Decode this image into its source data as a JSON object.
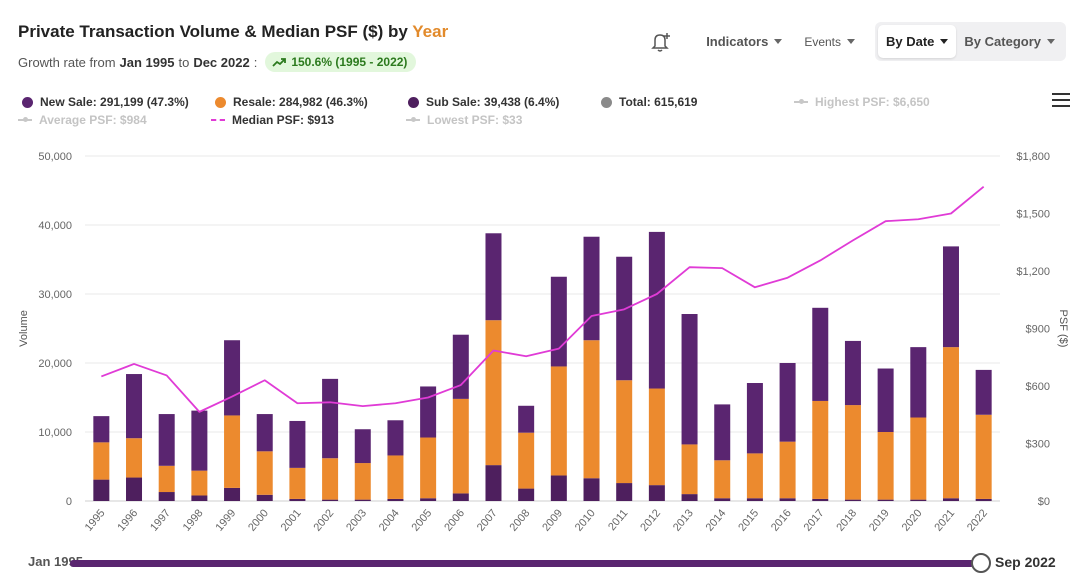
{
  "header": {
    "title_main": "Private Transaction Volume & Median PSF ($) by",
    "title_accent": "Year",
    "growth_prefix": "Growth rate from",
    "growth_from": "Jan 1995",
    "growth_to_word": "to",
    "growth_to": "Dec 2022",
    "growth_badge": "150.6% (1995 - 2022)"
  },
  "toolbar": {
    "indicators_label": "Indicators",
    "events_label": "Events",
    "by_date_label": "By Date",
    "by_category_label": "By Category",
    "icons": [
      "bell-plus-icon",
      "chevron-down-icon",
      "menu-icon"
    ]
  },
  "legend": {
    "new_sale": "New Sale: 291,199 (47.3%)",
    "resale": "Resale: 284,982 (46.3%)",
    "sub_sale": "Sub Sale: 39,438 (6.4%)",
    "total": "Total: 615,619",
    "highest_psf": "Highest PSF: $6,650",
    "average_psf": "Average PSF: $984",
    "median_psf": "Median PSF: $913",
    "lowest_psf": "Lowest PSF: $33"
  },
  "slider": {
    "start_label": "Jan 1995",
    "end_label": "Sep 2022"
  },
  "colors": {
    "new_sale": "#5a2570",
    "resale": "#ec8a2e",
    "sub_sale": "#4e1f5e",
    "total": "#8a8a8a",
    "median_psf": "#e03bd6",
    "growth_badge_bg": "#e2f7dc"
  },
  "chart_data": {
    "type": "bar",
    "stacked": true,
    "categories": [
      "1995",
      "1996",
      "1997",
      "1998",
      "1999",
      "2000",
      "2001",
      "2002",
      "2003",
      "2004",
      "2005",
      "2006",
      "2007",
      "2008",
      "2009",
      "2010",
      "2011",
      "2012",
      "2013",
      "2014",
      "2015",
      "2016",
      "2017",
      "2018",
      "2019",
      "2020",
      "2021",
      "2022"
    ],
    "series": [
      {
        "name": "Sub Sale",
        "values": [
          3100,
          3400,
          1300,
          800,
          1900,
          900,
          300,
          200,
          200,
          300,
          400,
          1100,
          5200,
          1800,
          3700,
          3300,
          2600,
          2300,
          1000,
          400,
          400,
          400,
          300,
          200,
          200,
          200,
          400,
          300
        ]
      },
      {
        "name": "Resale",
        "values": [
          5400,
          5700,
          3800,
          3600,
          10500,
          6300,
          4500,
          6000,
          5300,
          6300,
          8800,
          13700,
          21000,
          8100,
          15800,
          20000,
          14900,
          14000,
          7200,
          5500,
          6500,
          8200,
          14200,
          13700,
          9800,
          11900,
          21900,
          12200
        ]
      },
      {
        "name": "New Sale",
        "values": [
          3800,
          9300,
          7500,
          8700,
          10900,
          5400,
          6800,
          11500,
          4900,
          5100,
          7400,
          9300,
          12600,
          3900,
          13000,
          15000,
          17900,
          22700,
          18900,
          8100,
          10200,
          11400,
          13500,
          9300,
          9200,
          10200,
          14600,
          6500
        ]
      }
    ],
    "line": {
      "name": "Median PSF",
      "values": [
        650,
        715,
        655,
        465,
        545,
        630,
        510,
        515,
        495,
        510,
        540,
        605,
        785,
        755,
        795,
        965,
        1000,
        1080,
        1220,
        1215,
        1115,
        1165,
        1255,
        1360,
        1460,
        1470,
        1500,
        1640
      ]
    },
    "y_left": {
      "label": "Volume",
      "ticks": [
        "0",
        "10,000",
        "20,000",
        "30,000",
        "40,000",
        "50,000"
      ],
      "range": [
        0,
        50000
      ]
    },
    "y_right": {
      "label": "PSF ($)",
      "ticks": [
        "$0",
        "$300",
        "$600",
        "$900",
        "$1,200",
        "$1,500",
        "$1,800"
      ],
      "range": [
        0,
        1800
      ]
    },
    "grid": true
  }
}
